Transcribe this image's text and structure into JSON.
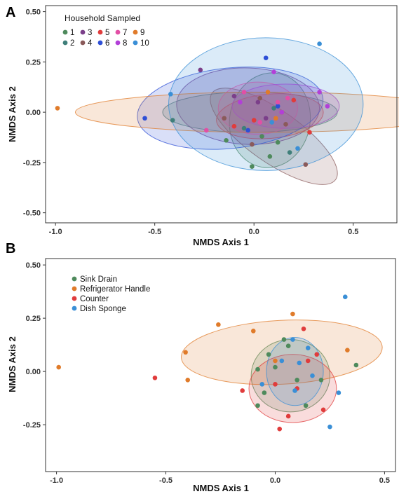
{
  "chart_data": [
    {
      "type": "scatter",
      "panel": "A",
      "xlabel": "NMDS Axis 1",
      "ylabel": "NMDS Axis 2",
      "xlim": [
        -1.05,
        0.72
      ],
      "ylim": [
        -0.55,
        0.53
      ],
      "xticks": [
        "-1.0",
        "-0.5",
        "0.0",
        "0.5"
      ],
      "xtick_values": [
        -1.0,
        -0.5,
        0.0,
        0.5
      ],
      "yticks": [
        "0.50",
        "0.25",
        "0.00",
        "-0.25",
        "-0.50"
      ],
      "ytick_values": [
        0.5,
        0.25,
        0.0,
        -0.25,
        -0.5
      ],
      "legend_title": "Household Sampled",
      "legend_position": "top-left",
      "series": [
        {
          "name": "1",
          "color": "#4e8a5c",
          "points": [
            [
              -0.01,
              -0.27
            ],
            [
              0.12,
              -0.15
            ],
            [
              0.04,
              -0.12
            ],
            [
              -0.14,
              -0.14
            ],
            [
              0.08,
              -0.22
            ]
          ],
          "ellipse": {
            "cx": 0.08,
            "cy": -0.04,
            "rx": 0.24,
            "ry": 0.2,
            "angle": 80
          }
        },
        {
          "name": "2",
          "color": "#3f7f7a",
          "points": [
            [
              -0.41,
              -0.04
            ],
            [
              0.18,
              -0.2
            ],
            [
              -0.05,
              -0.08
            ],
            [
              0.1,
              0.02
            ]
          ],
          "ellipse": {
            "cx": -0.02,
            "cy": 0.0,
            "rx": 0.44,
            "ry": 0.1,
            "angle": 0
          }
        },
        {
          "name": "3",
          "color": "#7b3f8a",
          "points": [
            [
              -0.27,
              0.21
            ],
            [
              -0.1,
              0.08
            ],
            [
              0.02,
              0.05
            ],
            [
              0.06,
              -0.03
            ]
          ],
          "ellipse": {
            "cx": -0.03,
            "cy": 0.03,
            "rx": 0.36,
            "ry": 0.19,
            "angle": -2
          }
        },
        {
          "name": "4",
          "color": "#8a5a5a",
          "points": [
            [
              0.26,
              -0.26
            ],
            [
              -0.15,
              -0.03
            ],
            [
              -0.01,
              -0.16
            ],
            [
              0.16,
              -0.06
            ],
            [
              0.03,
              0.07
            ]
          ],
          "ellipse": {
            "cx": 0.1,
            "cy": -0.12,
            "rx": 0.38,
            "ry": 0.13,
            "angle": -35
          }
        },
        {
          "name": "5",
          "color": "#e03c3c",
          "points": [
            [
              0.28,
              -0.1
            ],
            [
              0.14,
              0.0
            ],
            [
              0.0,
              -0.04
            ],
            [
              0.2,
              0.06
            ],
            [
              -0.1,
              -0.07
            ]
          ],
          "ellipse": {
            "cx": 0.08,
            "cy": -0.02,
            "rx": 0.27,
            "ry": 0.11,
            "angle": 5
          }
        },
        {
          "name": "6",
          "color": "#2e4fd6",
          "points": [
            [
              -0.55,
              -0.03
            ],
            [
              0.06,
              0.27
            ],
            [
              -0.03,
              -0.09
            ],
            [
              0.12,
              0.03
            ]
          ],
          "ellipse": {
            "cx": -0.12,
            "cy": 0.02,
            "rx": 0.47,
            "ry": 0.2,
            "angle": 6
          }
        },
        {
          "name": "7",
          "color": "#e24fa5",
          "points": [
            [
              -0.24,
              -0.09
            ],
            [
              0.12,
              0.05
            ],
            [
              0.03,
              -0.05
            ],
            [
              -0.05,
              0.1
            ],
            [
              0.17,
              0.07
            ]
          ],
          "ellipse": {
            "cx": 0.02,
            "cy": 0.02,
            "rx": 0.2,
            "ry": 0.13,
            "angle": 0
          }
        },
        {
          "name": "8",
          "color": "#b23fd8",
          "points": [
            [
              0.37,
              0.03
            ],
            [
              0.33,
              0.1
            ],
            [
              0.14,
              0.0
            ],
            [
              -0.07,
              0.05
            ],
            [
              0.1,
              0.2
            ]
          ],
          "ellipse": {
            "cx": 0.16,
            "cy": 0.03,
            "rx": 0.27,
            "ry": 0.11,
            "angle": 0
          }
        },
        {
          "name": "9",
          "color": "#e07b2a",
          "points": [
            [
              -0.99,
              0.02
            ],
            [
              0.07,
              0.1
            ],
            [
              0.11,
              -0.03
            ]
          ],
          "ellipse": {
            "cx": 0.06,
            "cy": 0.0,
            "rx": 0.96,
            "ry": 0.1,
            "angle": 0
          }
        },
        {
          "name": "10",
          "color": "#3a8fd6",
          "points": [
            [
              0.33,
              0.34
            ],
            [
              -0.42,
              0.09
            ],
            [
              0.22,
              -0.18
            ],
            [
              0.09,
              -0.05
            ]
          ],
          "ellipse": {
            "cx": 0.06,
            "cy": 0.04,
            "rx": 0.49,
            "ry": 0.33,
            "angle": 0
          }
        }
      ]
    },
    {
      "type": "scatter",
      "panel": "B",
      "xlabel": "NMDS Axis 1",
      "ylabel": "NMDS Axis 2",
      "xlim": [
        -1.05,
        0.55
      ],
      "ylim": [
        -0.47,
        0.53
      ],
      "xticks": [
        "-1.0",
        "-0.5",
        "0.0",
        "0.5"
      ],
      "xtick_values": [
        -1.0,
        -0.5,
        0.0,
        0.5
      ],
      "yticks": [
        "0.50",
        "0.25",
        "0.00",
        "-0.25"
      ],
      "ytick_values": [
        0.5,
        0.25,
        0.0,
        -0.25
      ],
      "legend_position": "top-left",
      "series": [
        {
          "name": "Sink Drain",
          "color": "#4e8a5c",
          "points": [
            [
              0.37,
              0.03
            ],
            [
              0.04,
              0.15
            ],
            [
              -0.08,
              0.01
            ],
            [
              -0.05,
              -0.1
            ],
            [
              -0.08,
              -0.16
            ],
            [
              0.0,
              0.02
            ],
            [
              0.1,
              -0.04
            ],
            [
              -0.03,
              0.08
            ],
            [
              0.21,
              -0.04
            ],
            [
              0.14,
              -0.16
            ],
            [
              0.06,
              0.12
            ]
          ],
          "ellipse": {
            "cx": 0.07,
            "cy": -0.02,
            "rx": 0.18,
            "ry": 0.17,
            "angle": 0
          }
        },
        {
          "name": "Refrigerator Handle",
          "color": "#e07b2a",
          "points": [
            [
              -0.99,
              0.02
            ],
            [
              -0.26,
              0.22
            ],
            [
              -0.41,
              0.09
            ],
            [
              -0.4,
              -0.04
            ],
            [
              -0.1,
              0.19
            ],
            [
              0.08,
              0.27
            ],
            [
              0.33,
              0.1
            ],
            [
              0.0,
              0.05
            ]
          ],
          "ellipse": {
            "cx": 0.03,
            "cy": 0.09,
            "rx": 0.46,
            "ry": 0.15,
            "angle": 3
          }
        },
        {
          "name": "Counter",
          "color": "#e03c3c",
          "points": [
            [
              -0.55,
              -0.03
            ],
            [
              -0.15,
              -0.09
            ],
            [
              0.02,
              -0.27
            ],
            [
              0.13,
              0.2
            ],
            [
              0.1,
              -0.08
            ],
            [
              0.06,
              -0.21
            ],
            [
              0.22,
              -0.18
            ],
            [
              0.0,
              -0.06
            ],
            [
              0.15,
              0.05
            ],
            [
              0.19,
              0.08
            ]
          ],
          "ellipse": {
            "cx": 0.08,
            "cy": -0.08,
            "rx": 0.2,
            "ry": 0.16,
            "angle": 0
          }
        },
        {
          "name": "Dish Sponge",
          "color": "#3a8fd6",
          "points": [
            [
              0.32,
              0.35
            ],
            [
              0.08,
              0.15
            ],
            [
              0.15,
              0.11
            ],
            [
              0.25,
              -0.26
            ],
            [
              0.29,
              -0.1
            ],
            [
              0.03,
              0.05
            ],
            [
              -0.06,
              -0.06
            ],
            [
              0.09,
              -0.09
            ],
            [
              0.11,
              0.04
            ],
            [
              0.17,
              -0.02
            ]
          ],
          "ellipse": {
            "cx": 0.09,
            "cy": 0.0,
            "rx": 0.13,
            "ry": 0.16,
            "angle": 0
          }
        }
      ]
    }
  ],
  "panels": {
    "A": {
      "letter": "A",
      "legend_rows": [
        [
          "1",
          "3",
          "5",
          "7",
          "9"
        ],
        [
          "2",
          "4",
          "6",
          "8",
          "10"
        ]
      ]
    },
    "B": {
      "letter": "B"
    }
  }
}
